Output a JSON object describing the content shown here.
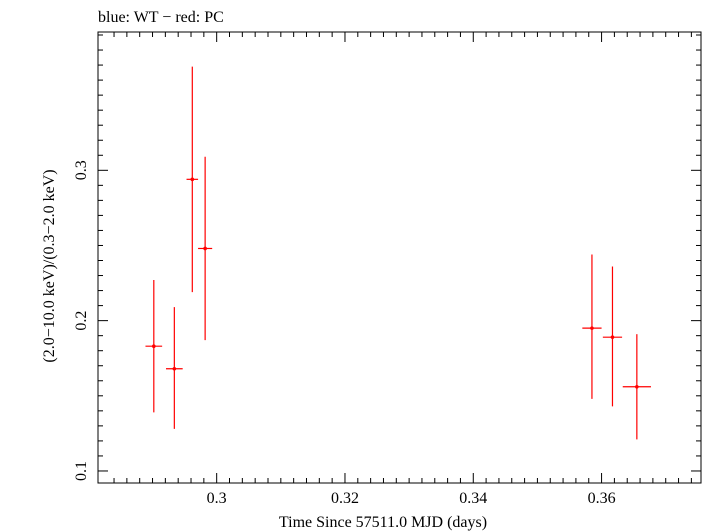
{
  "chart_data": {
    "type": "scatter",
    "title": "blue: WT − red: PC",
    "xlabel": "Time Since 57511.0 MJD (days)",
    "ylabel": "(2.0−10.0 keV)/(0.3−2.0 keV)",
    "xlim": [
      0.2815,
      0.3755
    ],
    "ylim": [
      0.092,
      0.392
    ],
    "x_ticks": [
      0.3,
      0.32,
      0.34,
      0.36
    ],
    "x_tick_labels": [
      "0.3",
      "0.32",
      "0.34",
      "0.36"
    ],
    "y_ticks": [
      0.1,
      0.2,
      0.3
    ],
    "y_tick_labels": [
      "0.1",
      "0.2",
      "0.3"
    ],
    "grid": false,
    "series": [
      {
        "color": "#ff0000",
        "points": [
          {
            "x": 0.2902,
            "xerr": 0.0013,
            "y": 0.183,
            "ylo": 0.139,
            "yhi": 0.227
          },
          {
            "x": 0.2934,
            "xerr": 0.0013,
            "y": 0.168,
            "ylo": 0.128,
            "yhi": 0.209
          },
          {
            "x": 0.2962,
            "xerr": 0.0009,
            "y": 0.294,
            "ylo": 0.219,
            "yhi": 0.369
          },
          {
            "x": 0.2982,
            "xerr": 0.0011,
            "y": 0.248,
            "ylo": 0.187,
            "yhi": 0.309
          },
          {
            "x": 0.3585,
            "xerr": 0.0015,
            "y": 0.195,
            "ylo": 0.148,
            "yhi": 0.244
          },
          {
            "x": 0.3617,
            "xerr": 0.0015,
            "y": 0.189,
            "ylo": 0.143,
            "yhi": 0.236
          },
          {
            "x": 0.3655,
            "xerr": 0.0022,
            "y": 0.156,
            "ylo": 0.121,
            "yhi": 0.191
          }
        ]
      }
    ]
  }
}
